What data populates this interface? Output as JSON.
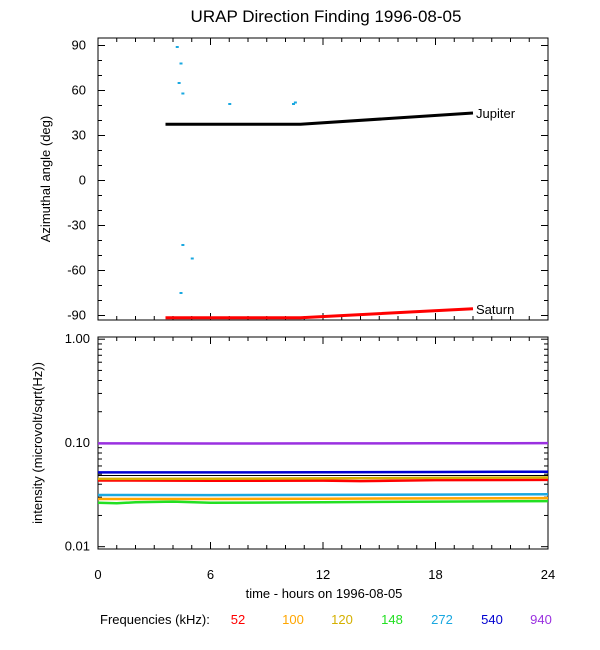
{
  "chart_data": [
    {
      "type": "line",
      "title": "URAP Direction Finding  1996-08-05",
      "ylabel": "Azimuthal angle (deg)",
      "xlim": [
        0,
        24
      ],
      "ylim": [
        -93,
        95
      ],
      "yticks": [
        90,
        60,
        30,
        0,
        -30,
        -60,
        -90
      ],
      "ytick_labels": [
        "90",
        "60",
        "30",
        "0",
        "-30",
        "-60",
        "-90"
      ],
      "series": [
        {
          "name": "Jupiter",
          "color": "#000000",
          "x": [
            3.6,
            10.8,
            20.0
          ],
          "y": [
            37.5,
            37.5,
            45.0
          ]
        },
        {
          "name": "Saturn",
          "color": "#ff0000",
          "x": [
            3.6,
            10.8,
            20.0
          ],
          "y": [
            -91.5,
            -91.5,
            -85.5
          ]
        }
      ],
      "scatter_points": {
        "color": "#1aa8e0",
        "x": [
          4.2,
          4.4,
          4.3,
          4.5,
          7.0,
          10.4,
          10.5,
          4.5,
          5.0,
          4.4
        ],
        "y": [
          89,
          78,
          65,
          58,
          51,
          51,
          52,
          -43,
          -52,
          -75
        ]
      }
    },
    {
      "type": "line",
      "ylabel": "intensity (microvolt/sqrt(Hz))",
      "xlabel": "time - hours on 1996-08-05",
      "xlim": [
        0,
        24
      ],
      "ylim": [
        0.0095,
        1.05
      ],
      "yscale": "log",
      "xticks": [
        0,
        6,
        12,
        18,
        24
      ],
      "xtick_labels": [
        "0",
        "6",
        "12",
        "18",
        "24"
      ],
      "yticks": [
        1.0,
        0.1,
        0.01
      ],
      "ytick_labels": [
        "1.00",
        "0.10",
        "0.01"
      ],
      "reference_lines": [
        0.1,
        0.0485
      ],
      "series": [
        {
          "name": "52",
          "color": "#ff0000",
          "x": [
            0,
            6,
            12,
            14,
            18,
            24
          ],
          "y": [
            0.0435,
            0.0432,
            0.0433,
            0.0428,
            0.0438,
            0.044
          ]
        },
        {
          "name": "100",
          "color": "#ffa500",
          "x": [
            0,
            6,
            12,
            18,
            24
          ],
          "y": [
            0.0288,
            0.0288,
            0.029,
            0.0292,
            0.0294
          ]
        },
        {
          "name": "120",
          "color": "#d4b000",
          "x": [
            0,
            6,
            12,
            18,
            24
          ],
          "y": [
            0.045,
            0.0452,
            0.0455,
            0.046,
            0.0465
          ]
        },
        {
          "name": "148",
          "color": "#22e022",
          "x": [
            0,
            1,
            2,
            4,
            6,
            12,
            18,
            24
          ],
          "y": [
            0.0265,
            0.0262,
            0.0268,
            0.0272,
            0.0265,
            0.0268,
            0.0272,
            0.0275
          ]
        },
        {
          "name": "272",
          "color": "#1aa8e0",
          "x": [
            0,
            6,
            12,
            18,
            24
          ],
          "y": [
            0.0315,
            0.0314,
            0.0316,
            0.0318,
            0.032
          ]
        },
        {
          "name": "540",
          "color": "#0000d0",
          "x": [
            0,
            6,
            12,
            18,
            24
          ],
          "y": [
            0.052,
            0.052,
            0.0522,
            0.0525,
            0.0528
          ]
        },
        {
          "name": "940",
          "color": "#9a30e0",
          "x": [
            0,
            6,
            12,
            18,
            24
          ],
          "y": [
            0.099,
            0.0988,
            0.099,
            0.0992,
            0.0995
          ]
        }
      ]
    }
  ],
  "legend": {
    "label": "Frequencies (kHz):",
    "items": [
      {
        "text": "52",
        "color": "#ff0000"
      },
      {
        "text": "100",
        "color": "#ffa500"
      },
      {
        "text": "120",
        "color": "#d4b000"
      },
      {
        "text": "148",
        "color": "#22e022"
      },
      {
        "text": "272",
        "color": "#1aa8e0"
      },
      {
        "text": "540",
        "color": "#0000d0"
      },
      {
        "text": "940",
        "color": "#9a30e0"
      }
    ]
  }
}
